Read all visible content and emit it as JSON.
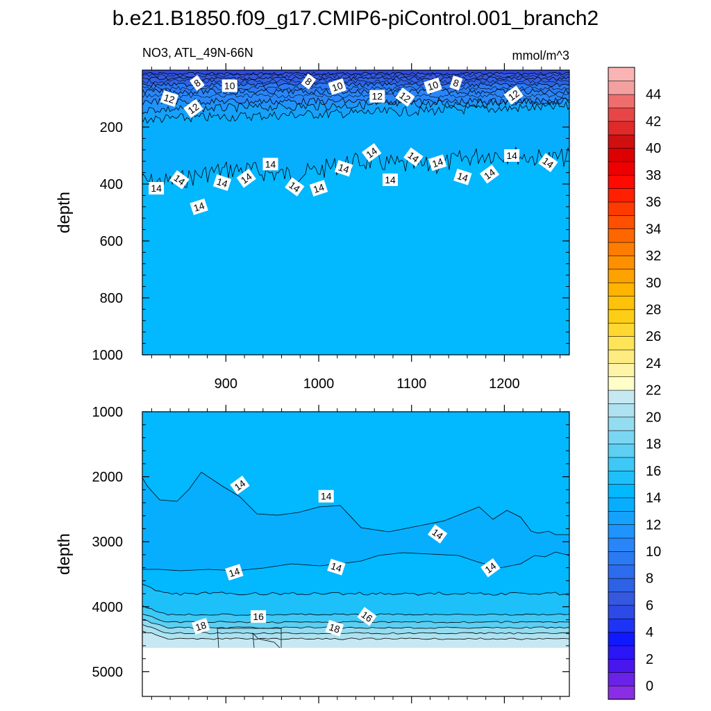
{
  "title": "b.e21.B1850.f09_g17.CMIP6-piControl.001_branch2",
  "left_string": "NO3, ATL_49N-66N",
  "units": "mmol/m^3",
  "chart_data": [
    {
      "type": "heatmap",
      "panel": "upper",
      "ylabel": "depth",
      "xlim": [
        810,
        1270
      ],
      "ylim": [
        1000,
        0
      ],
      "x_ticks": [
        900,
        1000,
        1100,
        1200
      ],
      "y_ticks": [
        200,
        400,
        600,
        800,
        1000
      ],
      "contour_labels": [
        {
          "value": "8",
          "x": 869,
          "depth": 45
        },
        {
          "value": "10",
          "x": 904,
          "depth": 55
        },
        {
          "value": "8",
          "x": 989,
          "depth": 40
        },
        {
          "value": "10",
          "x": 1020,
          "depth": 58
        },
        {
          "value": "12",
          "x": 839,
          "depth": 100
        },
        {
          "value": "12",
          "x": 865,
          "depth": 135
        },
        {
          "value": "12",
          "x": 1063,
          "depth": 92
        },
        {
          "value": "12",
          "x": 1093,
          "depth": 95
        },
        {
          "value": "10",
          "x": 1123,
          "depth": 55
        },
        {
          "value": "8",
          "x": 1148,
          "depth": 45
        },
        {
          "value": "12",
          "x": 1210,
          "depth": 88
        },
        {
          "value": "14",
          "x": 825,
          "depth": 415
        },
        {
          "value": "14",
          "x": 850,
          "depth": 385
        },
        {
          "value": "14",
          "x": 871,
          "depth": 480
        },
        {
          "value": "14",
          "x": 896,
          "depth": 395
        },
        {
          "value": "14",
          "x": 922,
          "depth": 380
        },
        {
          "value": "14",
          "x": 948,
          "depth": 330
        },
        {
          "value": "14",
          "x": 974,
          "depth": 410
        },
        {
          "value": "14",
          "x": 1000,
          "depth": 415
        },
        {
          "value": "14",
          "x": 1027,
          "depth": 345
        },
        {
          "value": "14",
          "x": 1057,
          "depth": 290
        },
        {
          "value": "14",
          "x": 1077,
          "depth": 385
        },
        {
          "value": "14",
          "x": 1102,
          "depth": 305
        },
        {
          "value": "14",
          "x": 1128,
          "depth": 325
        },
        {
          "value": "14",
          "x": 1155,
          "depth": 375
        },
        {
          "value": "14",
          "x": 1184,
          "depth": 365
        },
        {
          "value": "14",
          "x": 1208,
          "depth": 300
        },
        {
          "value": "14",
          "x": 1247,
          "depth": 325
        }
      ]
    },
    {
      "type": "heatmap",
      "panel": "lower",
      "ylabel": "depth",
      "xlim": [
        810,
        1270
      ],
      "ylim": [
        5380,
        1000
      ],
      "x_ticks": [
        900,
        1000,
        1100,
        1200
      ],
      "y_ticks": [
        1000,
        2000,
        3000,
        4000,
        5000
      ],
      "contour_labels": [
        {
          "value": "14",
          "x": 915,
          "depth": 2130
        },
        {
          "value": "14",
          "x": 1008,
          "depth": 2300
        },
        {
          "value": "14",
          "x": 1128,
          "depth": 2880
        },
        {
          "value": "14",
          "x": 909,
          "depth": 3470
        },
        {
          "value": "14",
          "x": 1019,
          "depth": 3390
        },
        {
          "value": "14",
          "x": 1185,
          "depth": 3400
        },
        {
          "value": "16",
          "x": 935,
          "depth": 4150
        },
        {
          "value": "16",
          "x": 1052,
          "depth": 4150
        },
        {
          "value": "18",
          "x": 873,
          "depth": 4300
        },
        {
          "value": "18",
          "x": 1017,
          "depth": 4330
        }
      ]
    }
  ],
  "colorbar": {
    "labels": [
      "0",
      "2",
      "4",
      "6",
      "8",
      "10",
      "12",
      "14",
      "16",
      "18",
      "20",
      "22",
      "24",
      "26",
      "28",
      "30",
      "32",
      "34",
      "36",
      "38",
      "40",
      "42",
      "44"
    ],
    "colors": [
      "#8a2ee6",
      "#6a22e6",
      "#4a16ee",
      "#2a16f6",
      "#1018fe",
      "#1e34f4",
      "#2c4ae6",
      "#3458e0",
      "#2e62e6",
      "#2c6cee",
      "#2a7af4",
      "#2886f8",
      "#1e94fc",
      "#14a2fc",
      "#08aefe",
      "#02b8ff",
      "#1ec0fa",
      "#3ec8f6",
      "#5ccff3",
      "#7ad6f2",
      "#94dcf0",
      "#aee2f0",
      "#c6e8f2",
      "#fefec8",
      "#fef4a8",
      "#feec80",
      "#fee458",
      "#fed830",
      "#fece14",
      "#fec208",
      "#feb400",
      "#fea200",
      "#fe9000",
      "#fe7c00",
      "#fe6600",
      "#fe5000",
      "#fe3a00",
      "#fe2000",
      "#fe0a00",
      "#ee0000",
      "#dc0000",
      "#d01010",
      "#e02a2a",
      "#e84646",
      "#ee6e6e",
      "#f4a0a0",
      "#fab4b4"
    ]
  }
}
